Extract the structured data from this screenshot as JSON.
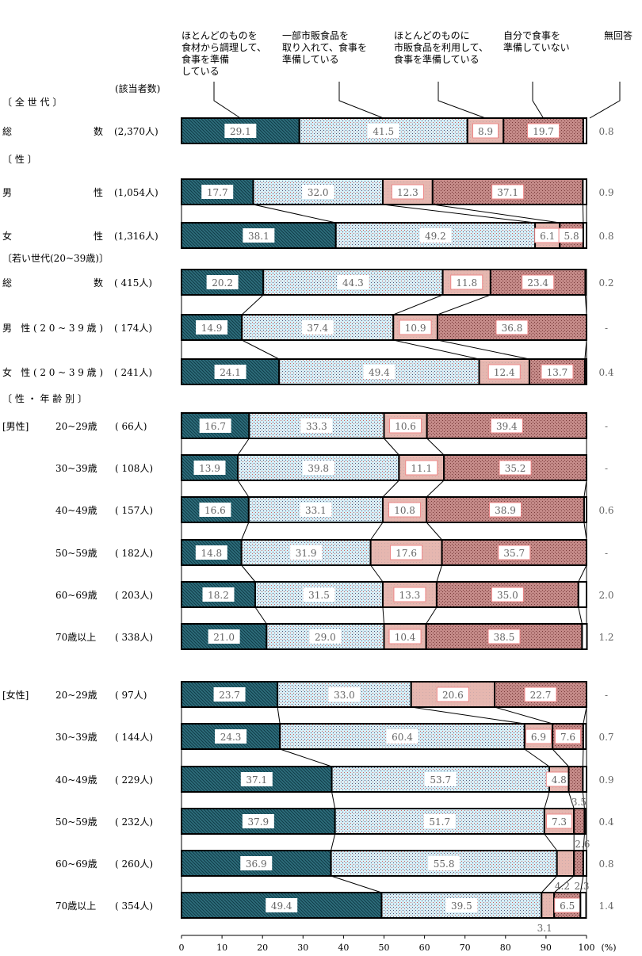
{
  "chart_data": {
    "type": "bar",
    "orientation": "horizontal-stacked-100",
    "count_header": "(該当者数)",
    "unit": "(%)",
    "xlim": [
      0,
      100
    ],
    "xticks": [
      0,
      10,
      20,
      30,
      40,
      50,
      60,
      70,
      80,
      90,
      100
    ],
    "series": [
      {
        "name": "ほとんどのものを食材から調理して、食事を準備している",
        "color": "#2e6e7c"
      },
      {
        "name": "一部市販食品を取り入れて、食事を準備している",
        "color": "#d6eef6"
      },
      {
        "name": "ほとんどのものに市販食品を利用して、食事を準備している",
        "color": "#e6b7b0"
      },
      {
        "name": "自分で食事を準備していない",
        "color": "#c48a88"
      },
      {
        "name": "無回答",
        "color": "#ffffff"
      }
    ],
    "sections": [
      {
        "label": "〔 全 世 代 〕"
      },
      {
        "label": "〔 性 〕"
      },
      {
        "label": "〔若い世代(20~39歳)〕"
      },
      {
        "label": "〔 性 ・ 年 齢 別 〕"
      }
    ],
    "rows": [
      {
        "group": "",
        "label": "総 数",
        "n": "(2,370人)",
        "values": [
          29.1,
          41.5,
          8.9,
          19.7,
          0.8
        ],
        "labels": [
          "29.1",
          "41.5",
          "8.9",
          "19.7",
          "0.8"
        ]
      },
      {
        "group": "",
        "label": "男 性",
        "n": "(1,054人)",
        "values": [
          17.7,
          32.0,
          12.3,
          37.1,
          0.9
        ],
        "labels": [
          "17.7",
          "32.0",
          "12.3",
          "37.1",
          "0.9"
        ]
      },
      {
        "group": "",
        "label": "女 性",
        "n": "(1,316人)",
        "values": [
          38.1,
          49.2,
          6.1,
          5.8,
          0.8
        ],
        "labels": [
          "38.1",
          "49.2",
          "6.1",
          "5.8",
          "0.8"
        ]
      },
      {
        "group": "",
        "label": "総 数",
        "n": "( 415人)",
        "values": [
          20.2,
          44.3,
          11.8,
          23.4,
          0.2
        ],
        "labels": [
          "20.2",
          "44.3",
          "11.8",
          "23.4",
          "0.2"
        ]
      },
      {
        "group": "",
        "label": "男 性(20~39歳)",
        "n": "( 174人)",
        "values": [
          14.9,
          37.4,
          10.9,
          36.8,
          0
        ],
        "labels": [
          "14.9",
          "37.4",
          "10.9",
          "36.8",
          "-"
        ]
      },
      {
        "group": "",
        "label": "女 性(20~39歳)",
        "n": "( 241人)",
        "values": [
          24.1,
          49.4,
          12.4,
          13.7,
          0.4
        ],
        "labels": [
          "24.1",
          "49.4",
          "12.4",
          "13.7",
          "0.4"
        ]
      },
      {
        "group": "[男性]",
        "label": "20~29歳",
        "n": "( 66人)",
        "values": [
          16.7,
          33.3,
          10.6,
          39.4,
          0
        ],
        "labels": [
          "16.7",
          "33.3",
          "10.6",
          "39.4",
          "-"
        ]
      },
      {
        "group": "",
        "label": "30~39歳",
        "n": "( 108人)",
        "values": [
          13.9,
          39.8,
          11.1,
          35.2,
          0
        ],
        "labels": [
          "13.9",
          "39.8",
          "11.1",
          "35.2",
          "-"
        ]
      },
      {
        "group": "",
        "label": "40~49歳",
        "n": "( 157人)",
        "values": [
          16.6,
          33.1,
          10.8,
          38.9,
          0.6
        ],
        "labels": [
          "16.6",
          "33.1",
          "10.8",
          "38.9",
          "0.6"
        ]
      },
      {
        "group": "",
        "label": "50~59歳",
        "n": "( 182人)",
        "values": [
          14.8,
          31.9,
          17.6,
          35.7,
          0
        ],
        "labels": [
          "14.8",
          "31.9",
          "17.6",
          "35.7",
          "-"
        ]
      },
      {
        "group": "",
        "label": "60~69歳",
        "n": "( 203人)",
        "values": [
          18.2,
          31.5,
          13.3,
          35.0,
          2.0
        ],
        "labels": [
          "18.2",
          "31.5",
          "13.3",
          "35.0",
          "2.0"
        ]
      },
      {
        "group": "",
        "label": "70歳以上",
        "n": "( 338人)",
        "values": [
          21.0,
          29.0,
          10.4,
          38.5,
          1.2
        ],
        "labels": [
          "21.0",
          "29.0",
          "10.4",
          "38.5",
          "1.2"
        ]
      },
      {
        "group": "[女性]",
        "label": "20~29歳",
        "n": "( 97人)",
        "values": [
          23.7,
          33.0,
          20.6,
          22.7,
          0
        ],
        "labels": [
          "23.7",
          "33.0",
          "20.6",
          "22.7",
          "-"
        ]
      },
      {
        "group": "",
        "label": "30~39歳",
        "n": "( 144人)",
        "values": [
          24.3,
          60.4,
          6.9,
          7.6,
          0.7
        ],
        "labels": [
          "24.3",
          "60.4",
          "6.9",
          "7.6",
          "0.7"
        ]
      },
      {
        "group": "",
        "label": "40~49歳",
        "n": "( 229人)",
        "values": [
          37.1,
          53.7,
          4.8,
          3.5,
          0.9
        ],
        "labels": [
          "37.1",
          "53.7",
          "4.8",
          "3.5",
          "0.9"
        ]
      },
      {
        "group": "",
        "label": "50~59歳",
        "n": "( 232人)",
        "values": [
          37.9,
          51.7,
          7.3,
          2.6,
          0.4
        ],
        "labels": [
          "37.9",
          "51.7",
          "7.3",
          "2.6",
          "0.4"
        ]
      },
      {
        "group": "",
        "label": "60~69歳",
        "n": "( 260人)",
        "values": [
          36.9,
          55.8,
          4.2,
          2.3,
          0.8
        ],
        "labels": [
          "36.9",
          "55.8",
          "4.2",
          "2.3",
          "0.8"
        ]
      },
      {
        "group": "",
        "label": "70歳以上",
        "n": "( 354人)",
        "values": [
          49.4,
          39.5,
          3.1,
          6.5,
          1.4
        ],
        "labels": [
          "49.4",
          "39.5",
          "3.1",
          "6.5",
          "1.4"
        ]
      }
    ]
  }
}
